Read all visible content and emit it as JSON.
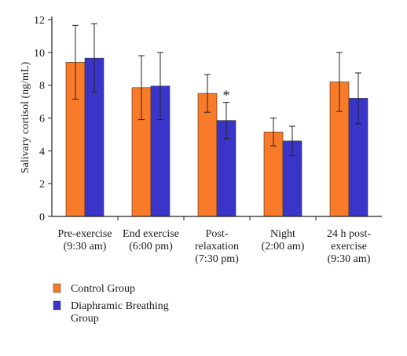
{
  "chart_data": {
    "type": "bar",
    "title": "",
    "xlabel": "",
    "ylabel": "Salivary cortisol (ng/mL)",
    "ylim": [
      0,
      12
    ],
    "yticks": [
      0,
      2,
      4,
      6,
      8,
      10,
      12
    ],
    "grid": false,
    "legend_position": "bottom-left",
    "categories": [
      [
        "Pre-exercise",
        "(9:30 am)"
      ],
      [
        "End exercise",
        "(6:00 pm)"
      ],
      [
        "Post-",
        "relaxation",
        "(7:30 pm)"
      ],
      [
        "Night",
        "(2:00 am)"
      ],
      [
        "24 h post-",
        "exercise",
        "(9:30 am)"
      ]
    ],
    "series": [
      {
        "name": "Control Group",
        "color": "#f97b2a",
        "values": [
          9.4,
          7.85,
          7.5,
          5.15,
          8.2
        ],
        "errors": [
          2.25,
          1.95,
          1.15,
          0.85,
          1.8
        ]
      },
      {
        "name": "Diaphramic Breathing Group",
        "color": "#3a35c9",
        "values": [
          9.65,
          7.95,
          5.85,
          4.6,
          7.2
        ],
        "errors": [
          2.1,
          2.05,
          1.1,
          0.9,
          1.55
        ]
      }
    ],
    "annotations": [
      {
        "text": "*",
        "category_index": 2,
        "series_index": 1
      }
    ]
  }
}
